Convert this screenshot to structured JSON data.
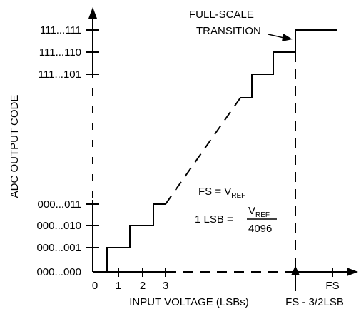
{
  "diagram": {
    "y_axis_label": "ADC OUTPUT CODE",
    "x_axis_label": "INPUT VOLTAGE (LSBs)",
    "y_ticks": [
      "111...111",
      "111...110",
      "111...101",
      "000...011",
      "000...010",
      "000...001",
      "000...000"
    ],
    "x_ticks": [
      "0",
      "1",
      "2",
      "3"
    ],
    "fs_label": "FS",
    "fs_minus_label": "FS - 3/2LSB",
    "annotation": {
      "line1": "FULL-SCALE",
      "line2": "TRANSITION"
    },
    "equation_fs": {
      "lhs": "FS = V",
      "sub": "REF"
    },
    "equation_lsb": {
      "lhs": "1 LSB =",
      "numerator": "V",
      "numerator_sub": "REF",
      "denominator": "4096"
    },
    "colors": {
      "ink": "#000000",
      "background": "#ffffff"
    }
  }
}
